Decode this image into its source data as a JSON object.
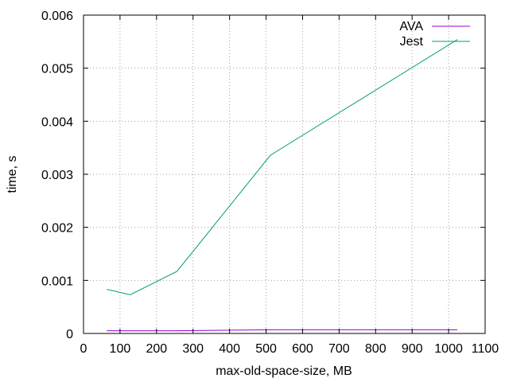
{
  "chart_data": {
    "type": "line",
    "title": "",
    "xlabel": "max-old-space-size, MB",
    "ylabel": "time, s",
    "xlim": [
      0,
      1100
    ],
    "ylim": [
      0,
      0.006
    ],
    "x_ticks": [
      "0",
      "100",
      "200",
      "300",
      "400",
      "500",
      "600",
      "700",
      "800",
      "900",
      "1000",
      "1100"
    ],
    "y_ticks": [
      "0",
      "0.001",
      "0.002",
      "0.003",
      "0.004",
      "0.005",
      "0.006"
    ],
    "grid": true,
    "legend_position": "top-right",
    "series": [
      {
        "name": "AVA",
        "color": "#9400d3",
        "x": [
          64,
          128,
          256,
          512,
          1024
        ],
        "y": [
          5e-05,
          5e-05,
          5e-05,
          7e-05,
          7e-05
        ]
      },
      {
        "name": "Jest",
        "color": "#009e73",
        "x": [
          64,
          128,
          256,
          512,
          1024
        ],
        "y": [
          0.00083,
          0.00073,
          0.00117,
          0.00336,
          0.00554
        ]
      }
    ]
  }
}
